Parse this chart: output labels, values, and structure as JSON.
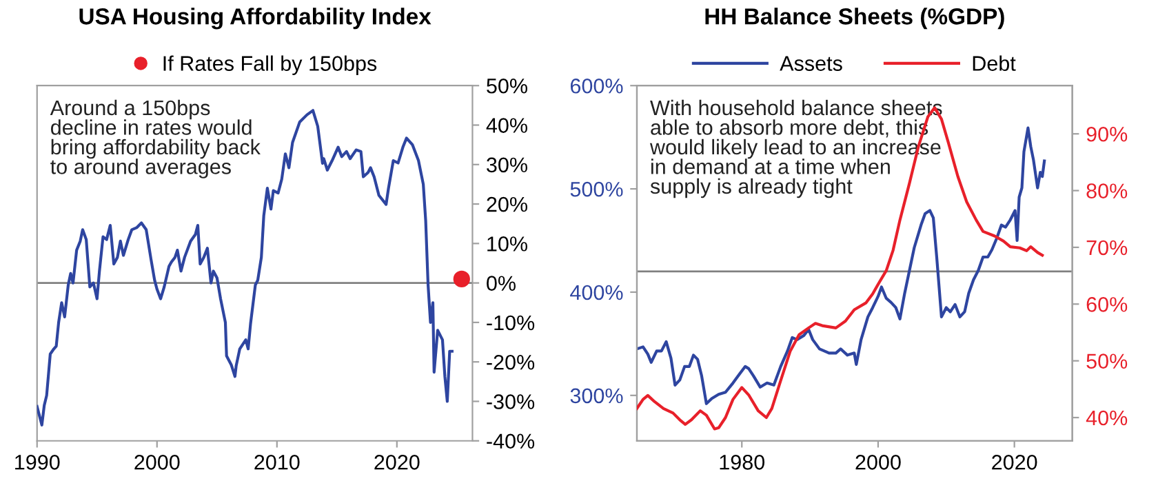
{
  "chart_data": [
    {
      "type": "line",
      "title": "USA Housing Affordability Index",
      "annotations": [
        "Around a 150bps\ndecline in rates would\nbring affordability back\nto around averages"
      ],
      "series": [
        {
          "color": "#2e45a0",
          "x": [
            1990,
            1990.4,
            1990.6,
            1990.8,
            1991.1,
            1991.4,
            1991.6,
            1991.8,
            1992.05,
            1992.3,
            1992.6,
            1992.8,
            1993,
            1993.3,
            1993.6,
            1993.8,
            1994.1,
            1994.4,
            1994.7,
            1995,
            1995.2,
            1995.5,
            1995.8,
            1996.1,
            1996.4,
            1996.7,
            1996.95,
            1997.2,
            1997.6,
            1997.9,
            1998.3,
            1998.7,
            1999.1,
            1999.5,
            1999.8,
            2000,
            2000.3,
            2000.6,
            2001,
            2001.2,
            2001.5,
            2001.7,
            2002,
            2002.3,
            2002.8,
            2003.2,
            2003.4,
            2003.6,
            2003.9,
            2004.2,
            2004.5,
            2004.7,
            2005,
            2005.3,
            2005.7,
            2005.8,
            2006.2,
            2006.5,
            2006.6,
            2006.9,
            2007.4,
            2007.6,
            2007.8,
            2008.2,
            2008.4,
            2008.7,
            2008.9,
            2009.2,
            2009.5,
            2009.7,
            2010.1,
            2010.4,
            2010.7,
            2011,
            2011.3,
            2011.9,
            2012.5,
            2013,
            2013.4,
            2013.8,
            2013.9,
            2014.2,
            2014.6,
            2015.1,
            2015.4,
            2015.8,
            2016.1,
            2016.6,
            2017,
            2017.2,
            2017.6,
            2017.8,
            2018.1,
            2018.5,
            2019.1,
            2019.3,
            2019.7,
            2020.1,
            2020.5,
            2020.8,
            2021.3,
            2021.8,
            2022.2,
            2022.4,
            2022.6,
            2022.8,
            2023,
            2023.1,
            2023.4,
            2023.8,
            2024,
            2024.2,
            2024.4,
            2024.6
          ],
          "values": [
            -31.3,
            -36,
            -31,
            -28.5,
            -18,
            -16.7,
            -16,
            -10,
            -5,
            -8.6,
            -0.5,
            2.4,
            0,
            8.3,
            10.6,
            13.5,
            11,
            -1,
            0,
            -4,
            3,
            11.7,
            11,
            14.6,
            4.8,
            6.5,
            10.6,
            7,
            11,
            13.5,
            14,
            15.2,
            13.5,
            6,
            0.7,
            -1.6,
            -4,
            -1,
            4.2,
            5.3,
            6.5,
            8.3,
            3,
            6.5,
            10.6,
            12.3,
            14.6,
            4.8,
            6.5,
            8.8,
            0,
            3,
            1.3,
            -4,
            -10,
            -18.5,
            -20.8,
            -23.7,
            -21,
            -16.7,
            -14.4,
            -16.7,
            -10.3,
            -0.5,
            0.7,
            6.5,
            17,
            24,
            18.7,
            23.4,
            22.8,
            26.3,
            32.7,
            29.2,
            35.6,
            40.8,
            42.6,
            43.7,
            39.7,
            30.3,
            31.5,
            28.6,
            31,
            34.4,
            32,
            33.3,
            31.5,
            33.7,
            33.3,
            26.9,
            28,
            29.2,
            26.9,
            22.2,
            19.9,
            24,
            31,
            30.4,
            34.4,
            36.7,
            35,
            31,
            25,
            15.8,
            -0.5,
            -10,
            -5,
            -22.6,
            -12,
            -14.4,
            -23.7,
            -30,
            -17.3,
            -17.3
          ]
        },
        {
          "type": "scatter",
          "name": "If Rates Fall by 150bps",
          "color": "#e8202a",
          "x": [
            2025.4
          ],
          "values": [
            1
          ]
        }
      ],
      "xlim": [
        1990,
        2026.3
      ],
      "xticks": [
        1990,
        2000,
        2010,
        2020
      ],
      "ylim": [
        -40,
        50
      ],
      "yticks": [
        {
          "value": 50,
          "label": "50%"
        },
        {
          "value": 40,
          "label": "40%"
        },
        {
          "value": 30,
          "label": "30%"
        },
        {
          "value": 20,
          "label": "20%"
        },
        {
          "value": 10,
          "label": "10%"
        },
        {
          "value": 0,
          "label": "0%"
        },
        {
          "value": -10,
          "label": "-10%"
        },
        {
          "value": -20,
          "label": "-20%"
        },
        {
          "value": -30,
          "label": "-30%"
        },
        {
          "value": -40,
          "label": "-40%"
        }
      ],
      "ref_lines": [
        {
          "axis": "y",
          "value": 0,
          "color": "#808080"
        }
      ],
      "legend": "top",
      "grid": false
    },
    {
      "type": "line",
      "title": "HH Balance Sheets (%GDP)",
      "annotations": [
        "With household balance sheets\nable to absorb more debt, this\nwould likely lead to an increase\nin demand at a time when\nsupply is already tight"
      ],
      "series": [
        {
          "name": "Assets",
          "color": "#2e45a0",
          "x": [
            1964.6,
            1965.5,
            1966.2,
            1966.7,
            1967.5,
            1968.2,
            1968.9,
            1969.6,
            1970.2,
            1970.9,
            1971.6,
            1972.3,
            1972.9,
            1973.5,
            1974.1,
            1974.8,
            1975.6,
            1976.6,
            1977.6,
            1978.7,
            1979.7,
            1980.5,
            1981,
            1981.7,
            1982.7,
            1983.7,
            1984.7,
            1985.7,
            1986.7,
            1987.4,
            1988.1,
            1989.1,
            1989.8,
            1990.4,
            1991.4,
            1992.8,
            1993.8,
            1994.5,
            1995.5,
            1996.5,
            1996.8,
            1997.5,
            1998.5,
            1999.2,
            2000,
            2000.5,
            2001.2,
            2001.9,
            2002.6,
            2003.2,
            2003.9,
            2004.6,
            2005.3,
            2006.3,
            2006.9,
            2007.6,
            2008.1,
            2008.6,
            2009.3,
            2010,
            2010.6,
            2011.3,
            2012,
            2012.7,
            2013.3,
            2014,
            2014.7,
            2015.4,
            2016.1,
            2016.7,
            2017.4,
            2018.1,
            2018.7,
            2019.4,
            2020.1,
            2020.4,
            2020.7,
            2021.1,
            2021.4,
            2022,
            2022.4,
            2022.8,
            2023.4,
            2023.8,
            2024.1,
            2024.4
          ],
          "values": [
            345,
            347,
            340,
            332,
            343,
            343,
            352,
            336,
            310,
            315,
            328,
            328,
            339,
            335,
            319,
            292,
            297,
            301,
            303,
            312,
            321,
            328,
            326,
            319,
            308,
            312,
            310,
            328,
            343,
            356,
            354,
            358,
            364,
            354,
            345,
            341,
            341,
            345,
            339,
            341,
            330,
            354,
            376,
            385,
            396,
            405,
            394,
            390,
            385,
            374,
            399,
            421,
            443,
            465,
            476,
            479,
            472,
            434,
            376,
            385,
            381,
            388,
            376,
            381,
            399,
            412,
            421,
            434,
            434,
            441,
            452,
            465,
            463,
            470,
            479,
            450,
            492,
            501,
            536,
            559,
            541,
            528,
            501,
            516,
            512,
            527
          ]
        },
        {
          "name": "Debt",
          "color": "#e8202a",
          "axis": "y2",
          "x": [
            1964.6,
            1965.5,
            1966.2,
            1967.2,
            1968.5,
            1969.9,
            1970.9,
            1971.7,
            1972.6,
            1973.9,
            1974.8,
            1976,
            1976.6,
            1977.6,
            1978.7,
            1980,
            1981,
            1982.4,
            1983.6,
            1984.4,
            1985.7,
            1987.1,
            1988.4,
            1989.8,
            1990.8,
            1991.8,
            1993.8,
            1995.2,
            1996.5,
            1998.2,
            1999.2,
            2000.2,
            2001.2,
            2002.2,
            2003.2,
            2004.6,
            2005.9,
            2007.3,
            2008.3,
            2009.3,
            2010.3,
            2011.7,
            2013,
            2014.4,
            2015.4,
            2017.1,
            2018.4,
            2019.4,
            2020.8,
            2021.8,
            2022.4,
            2023.4,
            2024.1
          ],
          "values": [
            41.6,
            43.2,
            43.9,
            42.8,
            41.6,
            40.8,
            39.6,
            38.8,
            39.6,
            41.2,
            40.4,
            38.0,
            38.2,
            40.0,
            43.2,
            45.3,
            44.0,
            41.2,
            40.0,
            41.6,
            46.5,
            51.7,
            54.6,
            55.8,
            56.6,
            56.2,
            55.8,
            57.0,
            59.0,
            60.2,
            61.8,
            63.9,
            65.9,
            69.5,
            74.8,
            81.3,
            87.7,
            93.0,
            94.6,
            92.6,
            88.5,
            82.5,
            78.0,
            74.8,
            72.8,
            72.0,
            71.1,
            70.1,
            69.9,
            69.4,
            70.1,
            69.1,
            68.6
          ]
        }
      ],
      "xlim": [
        1964.6,
        2028.5
      ],
      "xticks": [
        1980,
        2000,
        2020
      ],
      "ylim": [
        256,
        600
      ],
      "yticks": [
        {
          "value": 300,
          "label": "300%"
        },
        {
          "value": 400,
          "label": "400%"
        },
        {
          "value": 500,
          "label": "500%"
        },
        {
          "value": 600,
          "label": "600%"
        }
      ],
      "y2lim": [
        35.9,
        98.5
      ],
      "y2ticks": [
        {
          "value": 40,
          "label": "40%"
        },
        {
          "value": 50,
          "label": "50%"
        },
        {
          "value": 60,
          "label": "60%"
        },
        {
          "value": 70,
          "label": "70%"
        },
        {
          "value": 80,
          "label": "80%"
        },
        {
          "value": 90,
          "label": "90%"
        }
      ],
      "ref_lines": [
        {
          "axis": "y",
          "value": 420,
          "color": "#808080"
        }
      ],
      "legend": "top",
      "grid": false
    }
  ]
}
